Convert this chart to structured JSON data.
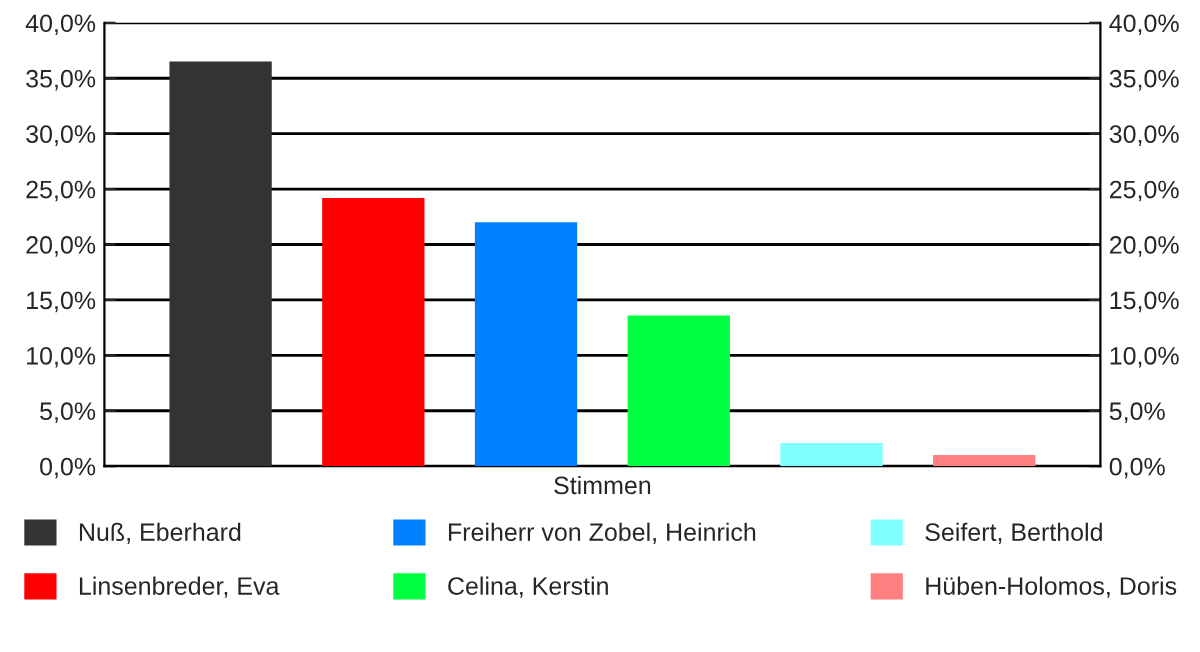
{
  "chart_data": {
    "type": "bar",
    "categories": [
      "Stimmen"
    ],
    "series": [
      {
        "name": "Nuß, Eberhard",
        "color": "#333333",
        "values": [
          36.5
        ]
      },
      {
        "name": "Linsenbreder, Eva",
        "color": "#ff0000",
        "values": [
          24.2
        ]
      },
      {
        "name": "Freiherr von Zobel, Heinrich",
        "color": "#0080ff",
        "values": [
          22.0
        ]
      },
      {
        "name": "Celina, Kerstin",
        "color": "#00ff40",
        "values": [
          13.6
        ]
      },
      {
        "name": "Seifert, Berthold",
        "color": "#80ffff",
        "values": [
          2.1
        ]
      },
      {
        "name": "Hüben-Holomos, Doris",
        "color": "#ff8080",
        "values": [
          1.0
        ]
      }
    ],
    "ylim": [
      0,
      40
    ],
    "yticks": [
      {
        "value": 0,
        "label": "0,0%"
      },
      {
        "value": 5,
        "label": "5,0%"
      },
      {
        "value": 10,
        "label": "10,0%"
      },
      {
        "value": 15,
        "label": "15,0%"
      },
      {
        "value": 20,
        "label": "20,0%"
      },
      {
        "value": 25,
        "label": "25,0%"
      },
      {
        "value": 30,
        "label": "30,0%"
      },
      {
        "value": 35,
        "label": "35,0%"
      },
      {
        "value": 40,
        "label": "40,0%"
      }
    ],
    "grid": "y",
    "legend": "bottom"
  }
}
